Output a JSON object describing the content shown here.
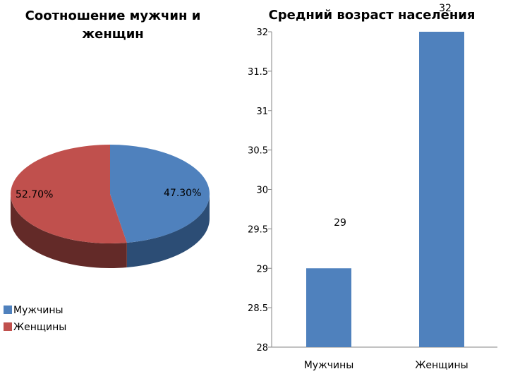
{
  "colors": {
    "men": "#4f81bd",
    "women": "#c0504d",
    "men_side": "#2c4d75",
    "women_side": "#632a28"
  },
  "chart_data": [
    {
      "type": "pie",
      "title_lines": [
        "Соотношение мужчин и",
        "женщин"
      ],
      "slices": [
        {
          "name": "Мужчины",
          "value": 47.3,
          "label": "47.30%"
        },
        {
          "name": "Женщины",
          "value": 52.7,
          "label": "52.70%"
        }
      ],
      "legend": [
        "Мужчины",
        "Женщины"
      ],
      "legend_position": "bottom-left"
    },
    {
      "type": "bar",
      "title": "Средний возраст населения",
      "categories": [
        "Мужчины",
        "Женщины"
      ],
      "values": [
        29,
        32
      ],
      "data_labels": [
        "29",
        "32"
      ],
      "ylim": [
        28,
        32
      ],
      "yticks": [
        "28",
        "28.5",
        "29",
        "29.5",
        "30",
        "30.5",
        "31",
        "31.5",
        "32"
      ],
      "grid": false
    }
  ]
}
